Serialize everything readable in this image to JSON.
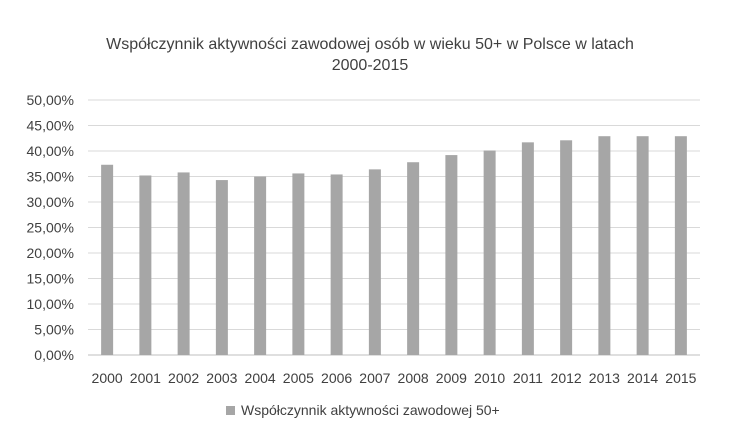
{
  "chart_data": {
    "type": "bar",
    "title_line1": "Współczynnik aktywności zawodowej osób w wieku 50+ w Polsce w latach",
    "title_line2": "2000-2015",
    "xlabel": "",
    "ylabel": "",
    "ylim": [
      0,
      50
    ],
    "yticks": [
      "0,00%",
      "5,00%",
      "10,00%",
      "15,00%",
      "20,00%",
      "25,00%",
      "30,00%",
      "35,00%",
      "40,00%",
      "45,00%",
      "50,00%"
    ],
    "grid": true,
    "legend_position": "bottom",
    "categories": [
      "2000",
      "2001",
      "2002",
      "2003",
      "2004",
      "2005",
      "2006",
      "2007",
      "2008",
      "2009",
      "2010",
      "2011",
      "2012",
      "2013",
      "2014",
      "2015"
    ],
    "series": [
      {
        "name": "Współczynnik aktywności zawodowej 50+",
        "color": "#a6a6a6",
        "values": [
          37.3,
          35.2,
          35.8,
          34.3,
          35.0,
          35.6,
          35.4,
          36.4,
          37.8,
          39.2,
          40.1,
          41.7,
          42.1,
          42.9,
          42.9,
          42.9
        ]
      }
    ]
  }
}
